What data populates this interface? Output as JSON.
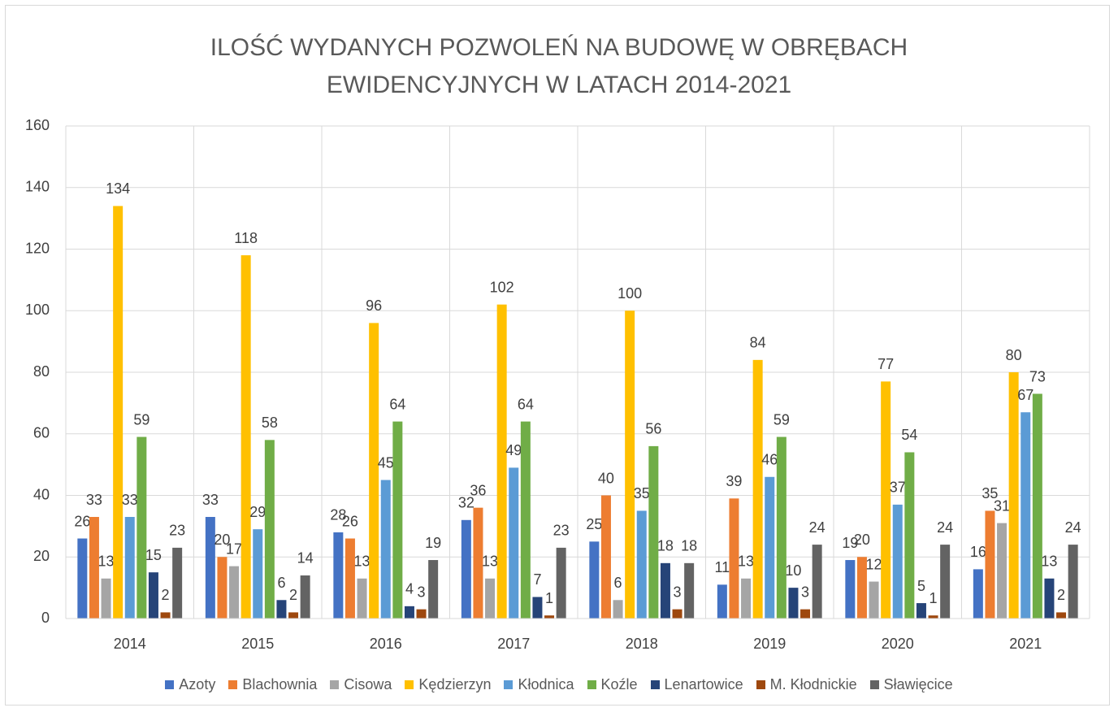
{
  "chart_data": {
    "type": "bar",
    "title": "ILOŚĆ WYDANYCH POZWOLEŃ NA BUDOWĘ W OBRĘBACH EWIDENCYJNYCH W LATACH 2014-2021",
    "categories": [
      "2014",
      "2015",
      "2016",
      "2017",
      "2018",
      "2019",
      "2020",
      "2021"
    ],
    "series": [
      {
        "name": "Azoty",
        "color": "#4472c4",
        "values": [
          26,
          33,
          28,
          32,
          25,
          11,
          19,
          16
        ]
      },
      {
        "name": "Blachownia",
        "color": "#ed7d31",
        "values": [
          33,
          20,
          26,
          36,
          40,
          39,
          20,
          35
        ]
      },
      {
        "name": "Cisowa",
        "color": "#a5a5a5",
        "values": [
          13,
          17,
          13,
          13,
          6,
          13,
          12,
          31
        ]
      },
      {
        "name": "Kędzierzyn",
        "color": "#ffc000",
        "values": [
          134,
          118,
          96,
          102,
          100,
          84,
          77,
          80
        ]
      },
      {
        "name": "Kłodnica",
        "color": "#5b9bd5",
        "values": [
          33,
          29,
          45,
          49,
          35,
          46,
          37,
          67
        ]
      },
      {
        "name": "Koźle",
        "color": "#70ad47",
        "values": [
          59,
          58,
          64,
          64,
          56,
          59,
          54,
          73
        ]
      },
      {
        "name": "Lenartowice",
        "color": "#264478",
        "values": [
          15,
          6,
          4,
          7,
          18,
          10,
          5,
          13
        ]
      },
      {
        "name": "M. Kłodnickie",
        "color": "#9e480e",
        "values": [
          2,
          2,
          3,
          1,
          3,
          3,
          1,
          2
        ]
      },
      {
        "name": "Sławięcice",
        "color": "#636363",
        "values": [
          23,
          14,
          19,
          23,
          18,
          24,
          24,
          24
        ]
      }
    ],
    "ylim": [
      0,
      160
    ],
    "yticks": [
      0,
      20,
      40,
      60,
      80,
      100,
      120,
      140,
      160
    ],
    "grid": true,
    "legend": "bottom"
  }
}
